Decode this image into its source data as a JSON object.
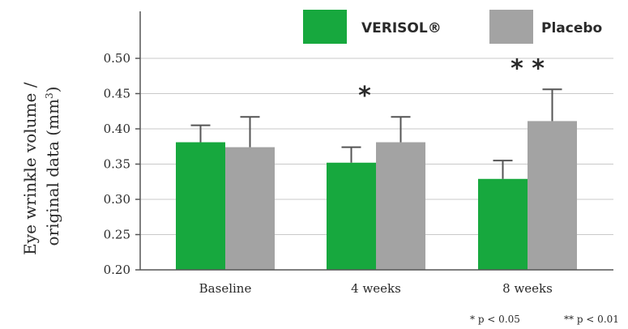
{
  "chart_data": {
    "type": "bar",
    "categories": [
      "Baseline",
      "4 weeks",
      "8 weeks"
    ],
    "series": [
      {
        "name": "VERISOL®",
        "color": "#17a83e",
        "values": [
          0.381,
          0.352,
          0.329
        ],
        "errors": [
          0.024,
          0.022,
          0.026
        ]
      },
      {
        "name": "Placebo",
        "color": "#a3a3a3",
        "values": [
          0.374,
          0.381,
          0.411
        ],
        "errors": [
          0.043,
          0.036,
          0.045
        ]
      }
    ],
    "ylabel_line1": "Eye wrinkle volume /",
    "ylabel_line2_prefix": "original data (mm",
    "ylabel_superscript": "3",
    "ylabel_line2_suffix": ")",
    "ylim": [
      0.2,
      0.5
    ],
    "yticks": [
      "0.20",
      "0.25",
      "0.30",
      "0.35",
      "0.40",
      "0.45",
      "0.50"
    ],
    "grid": true,
    "legend_position": "top-right",
    "annotations": [
      {
        "category": "4 weeks",
        "series": "VERISOL®",
        "text": "*"
      },
      {
        "category": "8 weeks",
        "series": "VERISOL®",
        "text": "* *"
      }
    ],
    "footnotes": [
      "* p < 0.05",
      "** p < 0.01"
    ]
  }
}
